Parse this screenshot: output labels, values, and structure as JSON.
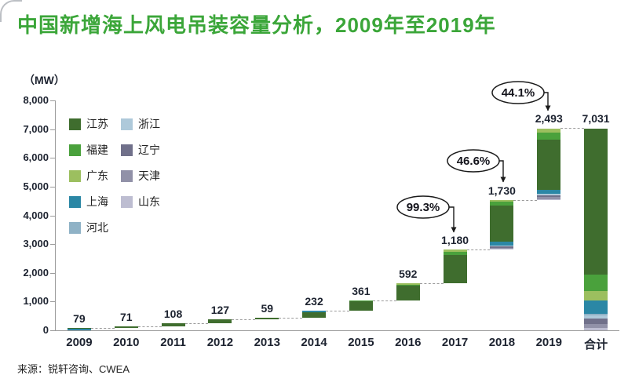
{
  "chart_data": {
    "type": "bar",
    "variant": "waterfall-stacked",
    "title": "中国新增海上风电吊装容量分析，2009年至2019年",
    "title_color": "#3BA639",
    "unit_label": "（MW）",
    "source": "来源：锐轩咨询、CWEA",
    "ylim": [
      0,
      8000
    ],
    "ytick_labels": [
      "8,000",
      "7,000",
      "6,000",
      "5,000",
      "4,000",
      "3,000",
      "2,000",
      "1,000",
      "0"
    ],
    "categories": [
      "2009",
      "2010",
      "2011",
      "2012",
      "2013",
      "2014",
      "2015",
      "2016",
      "2017",
      "2018",
      "2019",
      "合计"
    ],
    "values": [
      79,
      71,
      108,
      127,
      59,
      232,
      361,
      592,
      1180,
      1730,
      2493,
      7031
    ],
    "value_labels": [
      "79",
      "71",
      "108",
      "127",
      "59",
      "232",
      "361",
      "592",
      "1,180",
      "1,730",
      "2,493",
      "7,031"
    ],
    "legend": [
      {
        "name": "江苏",
        "color": "#3f6d2e"
      },
      {
        "name": "福建",
        "color": "#4aa13c"
      },
      {
        "name": "广东",
        "color": "#9cbf5f"
      },
      {
        "name": "上海",
        "color": "#2b87a5"
      },
      {
        "name": "河北",
        "color": "#8fb2c6"
      },
      {
        "name": "浙江",
        "color": "#aec9da"
      },
      {
        "name": "辽宁",
        "color": "#70708a"
      },
      {
        "name": "天津",
        "color": "#9191a8"
      },
      {
        "name": "山东",
        "color": "#bdbdd1"
      }
    ],
    "segments": [
      [
        {
          "name": "上海",
          "value": 63
        },
        {
          "name": "江苏",
          "value": 16
        }
      ],
      [
        {
          "name": "江苏",
          "value": 50
        },
        {
          "name": "上海",
          "value": 21
        }
      ],
      [
        {
          "name": "江苏",
          "value": 99
        },
        {
          "name": "山东",
          "value": 9
        }
      ],
      [
        {
          "name": "江苏",
          "value": 127
        }
      ],
      [
        {
          "name": "江苏",
          "value": 39
        },
        {
          "name": "上海",
          "value": 20
        }
      ],
      [
        {
          "name": "江苏",
          "value": 190
        },
        {
          "name": "上海",
          "value": 42
        }
      ],
      [
        {
          "name": "江苏",
          "value": 330
        },
        {
          "name": "福建",
          "value": 31
        }
      ],
      [
        {
          "name": "江苏",
          "value": 520
        },
        {
          "name": "福建",
          "value": 40
        },
        {
          "name": "广东",
          "value": 32
        }
      ],
      [
        {
          "name": "江苏",
          "value": 1000
        },
        {
          "name": "福建",
          "value": 100
        },
        {
          "name": "广东",
          "value": 80
        }
      ],
      [
        {
          "name": "山东",
          "value": 25
        },
        {
          "name": "天津",
          "value": 45
        },
        {
          "name": "辽宁",
          "value": 45
        },
        {
          "name": "浙江",
          "value": 25
        },
        {
          "name": "上海",
          "value": 140
        },
        {
          "name": "江苏",
          "value": 1250
        },
        {
          "name": "福建",
          "value": 150
        },
        {
          "name": "广东",
          "value": 50
        }
      ],
      [
        {
          "name": "山东",
          "value": 30
        },
        {
          "name": "天津",
          "value": 60
        },
        {
          "name": "辽宁",
          "value": 70
        },
        {
          "name": "浙江",
          "value": 40
        },
        {
          "name": "河北",
          "value": 20
        },
        {
          "name": "上海",
          "value": 120
        },
        {
          "name": "江苏",
          "value": 1753
        },
        {
          "name": "福建",
          "value": 250
        },
        {
          "name": "广东",
          "value": 150
        }
      ],
      [
        {
          "name": "山东",
          "value": 80
        },
        {
          "name": "天津",
          "value": 150
        },
        {
          "name": "辽宁",
          "value": 170
        },
        {
          "name": "浙江",
          "value": 120
        },
        {
          "name": "河北",
          "value": 60
        },
        {
          "name": "上海",
          "value": 450
        },
        {
          "name": "广东",
          "value": 350
        },
        {
          "name": "福建",
          "value": 550
        },
        {
          "name": "江苏",
          "value": 5101
        }
      ]
    ],
    "growth_annotations": [
      {
        "label": "99.3%",
        "from": "2016",
        "to": "2017"
      },
      {
        "label": "46.6%",
        "from": "2017",
        "to": "2018"
      },
      {
        "label": "44.1%",
        "from": "2018",
        "to": "2019"
      }
    ]
  }
}
